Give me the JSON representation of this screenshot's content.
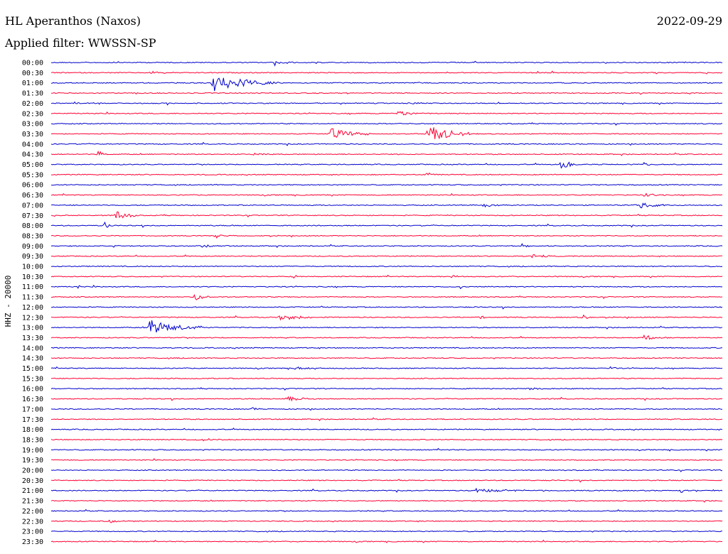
{
  "header": {
    "title": "HL Aperanthos (Naxos)",
    "date": "2022-09-29",
    "filter": "Applied filter: WWSSN-SP"
  },
  "colors": {
    "even": "#0000cc",
    "odd": "#ff0033"
  },
  "chart_data": {
    "type": "line",
    "title": "HL Aperanthos (Naxos)",
    "ylabel": "HHZ - 20000",
    "xlabel": "",
    "time_rows": [
      "00:00",
      "00:30",
      "01:00",
      "01:30",
      "02:00",
      "02:30",
      "03:00",
      "03:30",
      "04:00",
      "04:30",
      "05:00",
      "05:30",
      "06:00",
      "06:30",
      "07:00",
      "07:30",
      "08:00",
      "08:30",
      "09:00",
      "09:30",
      "10:00",
      "10:30",
      "11:00",
      "11:30",
      "12:00",
      "12:30",
      "13:00",
      "13:30",
      "14:00",
      "14:30",
      "15:00",
      "15:30",
      "16:00",
      "16:30",
      "17:00",
      "17:30",
      "18:00",
      "18:30",
      "19:00",
      "19:30",
      "20:00",
      "20:30",
      "21:00",
      "21:30",
      "22:00",
      "22:30",
      "23:00",
      "23:30"
    ],
    "row_minutes": 30,
    "series_colors": [
      "#0000cc",
      "#ff0033"
    ],
    "events": [
      {
        "row": "00:00",
        "minute": 10,
        "amp": 0.6,
        "dur": 0.8
      },
      {
        "row": "00:30",
        "minute": 4.5,
        "amp": 0.3,
        "dur": 1.0
      },
      {
        "row": "00:30",
        "minute": 30,
        "amp": 0.3,
        "dur": 0.8
      },
      {
        "row": "01:00",
        "minute": 7.2,
        "amp": 1.8,
        "dur": 3.0
      },
      {
        "row": "02:00",
        "minute": 1.0,
        "amp": 0.3,
        "dur": 1.0
      },
      {
        "row": "02:00",
        "minute": 16,
        "amp": 0.3,
        "dur": 0.8
      },
      {
        "row": "02:30",
        "minute": 15.5,
        "amp": 0.6,
        "dur": 1.5
      },
      {
        "row": "03:30",
        "minute": 12.5,
        "amp": 1.1,
        "dur": 2.0
      },
      {
        "row": "03:30",
        "minute": 16.8,
        "amp": 2.2,
        "dur": 2.0
      },
      {
        "row": "04:30",
        "minute": 2.1,
        "amp": 0.8,
        "dur": 0.4
      },
      {
        "row": "04:30",
        "minute": 9,
        "amp": 0.4,
        "dur": 1.0
      },
      {
        "row": "05:00",
        "minute": 22.8,
        "amp": 1.1,
        "dur": 0.8
      },
      {
        "row": "05:00",
        "minute": 26.5,
        "amp": 0.4,
        "dur": 0.5
      },
      {
        "row": "05:30",
        "minute": 16.8,
        "amp": 0.5,
        "dur": 0.4
      },
      {
        "row": "06:30",
        "minute": 26.5,
        "amp": 0.5,
        "dur": 1.0
      },
      {
        "row": "07:00",
        "minute": 26.2,
        "amp": 0.8,
        "dur": 1.5
      },
      {
        "row": "07:00",
        "minute": 19.3,
        "amp": 0.3,
        "dur": 1.5
      },
      {
        "row": "07:30",
        "minute": 2.9,
        "amp": 1.0,
        "dur": 1.0
      },
      {
        "row": "08:00",
        "minute": 2.4,
        "amp": 0.8,
        "dur": 0.4
      },
      {
        "row": "08:30",
        "minute": 7.4,
        "amp": 0.4,
        "dur": 0.8
      },
      {
        "row": "09:00",
        "minute": 2.8,
        "amp": 0.4,
        "dur": 0.5
      },
      {
        "row": "09:00",
        "minute": 6.5,
        "amp": 0.4,
        "dur": 1.5
      },
      {
        "row": "09:00",
        "minute": 21.0,
        "amp": 0.6,
        "dur": 0.5
      },
      {
        "row": "09:30",
        "minute": 21.5,
        "amp": 0.4,
        "dur": 1.0
      },
      {
        "row": "10:30",
        "minute": 10.8,
        "amp": 0.4,
        "dur": 0.6
      },
      {
        "row": "10:30",
        "minute": 17.9,
        "amp": 0.5,
        "dur": 0.4
      },
      {
        "row": "11:00",
        "minute": 1.2,
        "amp": 0.6,
        "dur": 0.3
      },
      {
        "row": "11:00",
        "minute": 18.3,
        "amp": 0.4,
        "dur": 0.5
      },
      {
        "row": "11:30",
        "minute": 6.4,
        "amp": 0.8,
        "dur": 0.8
      },
      {
        "row": "12:30",
        "minute": 10.2,
        "amp": 0.8,
        "dur": 1.5
      },
      {
        "row": "12:30",
        "minute": 19.2,
        "amp": 0.4,
        "dur": 0.4
      },
      {
        "row": "12:30",
        "minute": 23.8,
        "amp": 0.4,
        "dur": 0.8
      },
      {
        "row": "13:00",
        "minute": 4.4,
        "amp": 1.6,
        "dur": 2.5
      },
      {
        "row": "13:30",
        "minute": 26.5,
        "amp": 0.5,
        "dur": 1.2
      },
      {
        "row": "15:00",
        "minute": 11.0,
        "amp": 0.5,
        "dur": 0.8
      },
      {
        "row": "15:00",
        "minute": 25.0,
        "amp": 0.4,
        "dur": 0.3
      },
      {
        "row": "16:00",
        "minute": 21.3,
        "amp": 0.3,
        "dur": 1.0
      },
      {
        "row": "16:30",
        "minute": 10.6,
        "amp": 0.6,
        "dur": 1.2
      },
      {
        "row": "17:00",
        "minute": 9.0,
        "amp": 0.3,
        "dur": 0.4
      },
      {
        "row": "18:30",
        "minute": 6.5,
        "amp": 0.3,
        "dur": 1.5
      },
      {
        "row": "21:00",
        "minute": 19.0,
        "amp": 0.4,
        "dur": 3.0
      },
      {
        "row": "21:00",
        "minute": 28.1,
        "amp": 0.4,
        "dur": 0.8
      },
      {
        "row": "22:30",
        "minute": 2.6,
        "amp": 0.3,
        "dur": 1.2
      }
    ]
  }
}
